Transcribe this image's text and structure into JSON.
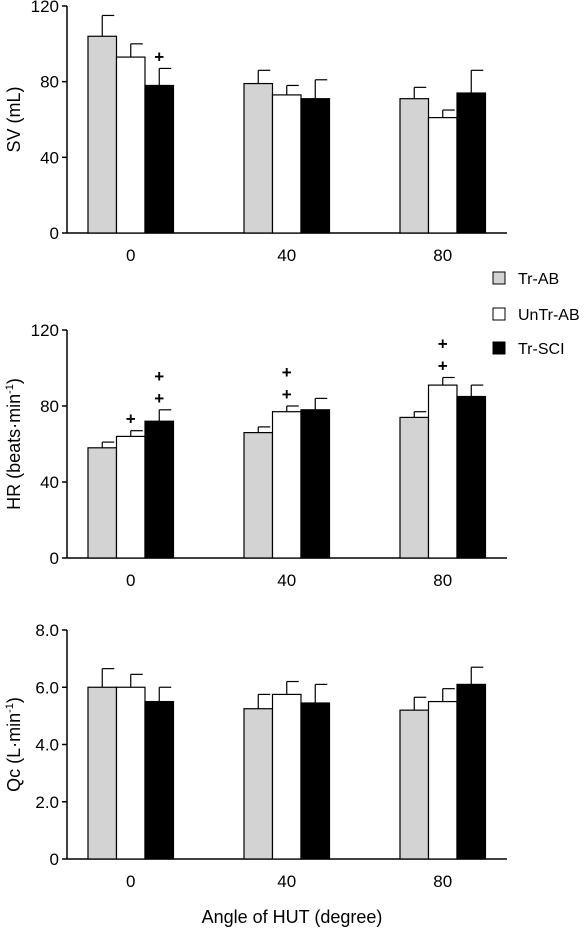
{
  "figure": {
    "x_axis_title": "Angle of HUT (degree)",
    "colors": {
      "Tr-AB": "#d3d3d3",
      "UnTr-AB": "#ffffff",
      "Tr-SCI": "#000000",
      "axis": "#000000"
    }
  },
  "legend": {
    "placement": "right, between top and middle panels",
    "items": [
      "Tr-AB",
      "UnTr-AB",
      "Tr-SCI"
    ]
  },
  "chart_data": [
    {
      "type": "bar",
      "ylabel_main": "SV (mL)",
      "ylabel_sup": "",
      "ylabel_tail": "",
      "categories": [
        "0",
        "40",
        "80"
      ],
      "yticks": [
        "0",
        "40",
        "80",
        "120"
      ],
      "ylim": [
        0,
        120
      ],
      "series": [
        {
          "name": "Tr-AB",
          "values": [
            104,
            79,
            71
          ],
          "errors": [
            11,
            7,
            6
          ]
        },
        {
          "name": "UnTr-AB",
          "values": [
            93,
            73,
            61
          ],
          "errors": [
            7,
            5,
            4
          ]
        },
        {
          "name": "Tr-SCI",
          "values": [
            78,
            71,
            74
          ],
          "errors": [
            9,
            10,
            12
          ]
        }
      ],
      "annotations": [
        {
          "category": "0",
          "series": "Tr-SCI",
          "text": "+"
        }
      ]
    },
    {
      "type": "bar",
      "ylabel_main": "HR (beats·min",
      "ylabel_sup": "-1",
      "ylabel_tail": ")",
      "categories": [
        "0",
        "40",
        "80"
      ],
      "yticks": [
        "0",
        "40",
        "80",
        "120"
      ],
      "ylim": [
        0,
        120
      ],
      "series": [
        {
          "name": "Tr-AB",
          "values": [
            58,
            66,
            74
          ],
          "errors": [
            3,
            3,
            3
          ]
        },
        {
          "name": "UnTr-AB",
          "values": [
            64,
            77,
            91
          ],
          "errors": [
            3,
            3,
            4
          ]
        },
        {
          "name": "Tr-SCI",
          "values": [
            72,
            78,
            85
          ],
          "errors": [
            6,
            6,
            6
          ]
        }
      ],
      "annotations": [
        {
          "category": "0",
          "series": "UnTr-AB",
          "text": "+"
        },
        {
          "category": "0",
          "series": "Tr-SCI",
          "text": "+"
        },
        {
          "category": "0",
          "series": "Tr-SCI",
          "text": "+"
        },
        {
          "category": "40",
          "series": "UnTr-AB",
          "text": "+"
        },
        {
          "category": "40",
          "series": "UnTr-AB",
          "text": "+"
        },
        {
          "category": "80",
          "series": "UnTr-AB",
          "text": "+"
        },
        {
          "category": "80",
          "series": "UnTr-AB",
          "text": "+"
        }
      ]
    },
    {
      "type": "bar",
      "ylabel_main": "Qc (L·min",
      "ylabel_sup": "-1",
      "ylabel_tail": ")",
      "categories": [
        "0",
        "40",
        "80"
      ],
      "yticks": [
        "0",
        "2.0",
        "4.0",
        "6.0",
        "8.0"
      ],
      "ylim": [
        0,
        8
      ],
      "series": [
        {
          "name": "Tr-AB",
          "values": [
            6.0,
            5.25,
            5.2
          ],
          "errors": [
            0.65,
            0.5,
            0.45
          ]
        },
        {
          "name": "UnTr-AB",
          "values": [
            6.0,
            5.75,
            5.5
          ],
          "errors": [
            0.45,
            0.45,
            0.45
          ]
        },
        {
          "name": "Tr-SCI",
          "values": [
            5.5,
            5.45,
            6.1
          ],
          "errors": [
            0.5,
            0.65,
            0.6
          ]
        }
      ],
      "annotations": []
    }
  ]
}
